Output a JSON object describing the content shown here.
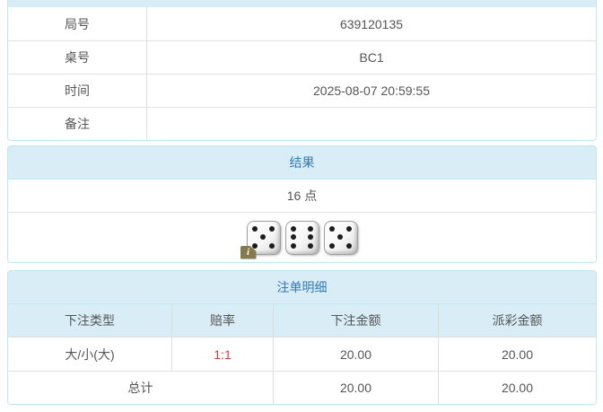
{
  "colors": {
    "panel_border": "#bce8f1",
    "heading_bg": "#d9edf7",
    "heading_text": "#337ab7",
    "body_text": "#555555",
    "odds_red": "#e03c3c",
    "info_badge_bg": "#87794e"
  },
  "game_info": {
    "rows": [
      {
        "label": "局号",
        "value": "639120135"
      },
      {
        "label": "桌号",
        "value": "BC1"
      },
      {
        "label": "时间",
        "value": "2025-08-07 20:59:55"
      },
      {
        "label": "备注",
        "value": ""
      }
    ]
  },
  "result": {
    "title": "结果",
    "points": "16 点",
    "dice": [
      5,
      6,
      5
    ],
    "info_badge": "i"
  },
  "bet_details": {
    "title": "注单明细",
    "columns": [
      "下注类型",
      "赔率",
      "下注金额",
      "派彩金额"
    ],
    "rows": [
      {
        "type": "大/小(大)",
        "odds": "1:1",
        "bet": "20.00",
        "payout": "20.00"
      }
    ],
    "total": {
      "label": "总计",
      "bet": "20.00",
      "payout": "20.00"
    }
  }
}
